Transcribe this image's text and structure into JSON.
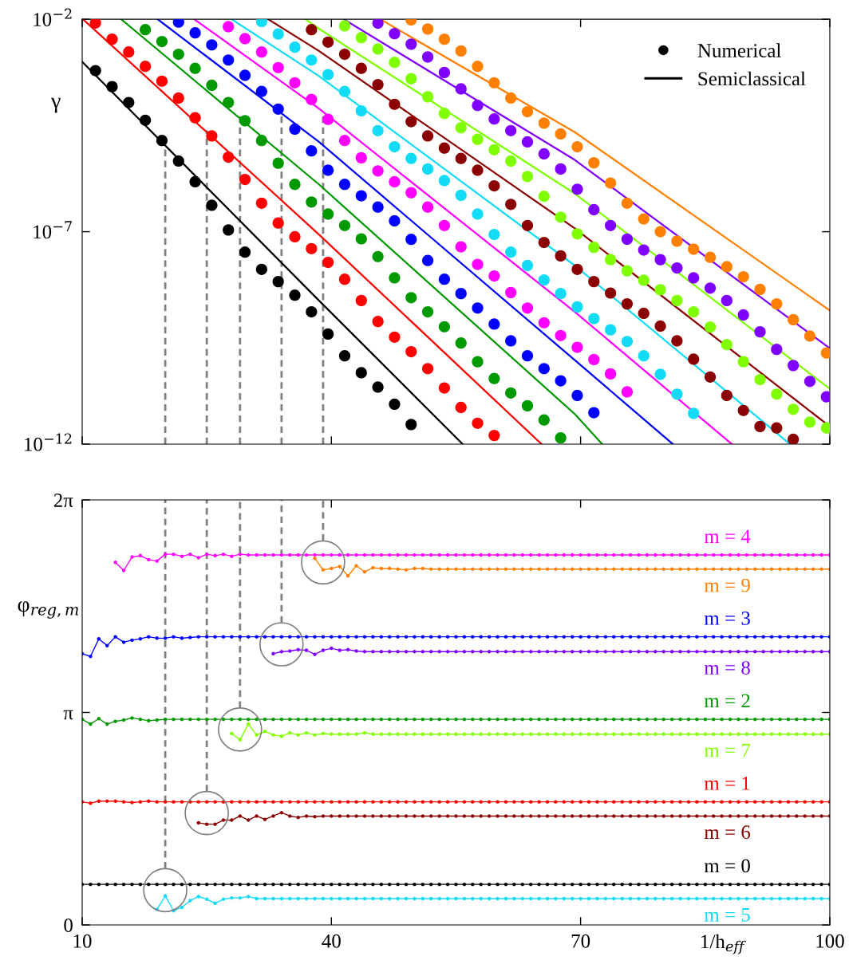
{
  "chart_data": [
    {
      "type": "scatter",
      "ylabel": "γ",
      "log": "y",
      "xlim": [
        10,
        100
      ],
      "xticks": [
        10,
        40,
        70,
        100
      ],
      "ylim": [
        1e-12,
        0.01
      ],
      "yticks": [
        {
          "value": 0.01,
          "label": "10$^{−2}$"
        },
        {
          "value": 1e-07,
          "label": "10$^{−7}$"
        },
        {
          "value": 1e-12,
          "label": "10$^{−12}$"
        }
      ],
      "tick_labels": "y",
      "legend": "top right",
      "marker": "circle",
      "ref_lines": [
        {
          "axis": "x",
          "value": 20,
          "color": "#808080",
          "line_style": "dashed"
        },
        {
          "axis": "x",
          "value": 25,
          "color": "#808080",
          "line_style": "dashed"
        },
        {
          "axis": "x",
          "value": 29,
          "color": "#808080",
          "line_style": "dashed"
        },
        {
          "axis": "x",
          "value": 34,
          "color": "#808080",
          "line_style": "dashed"
        },
        {
          "axis": "x",
          "value": 39,
          "color": "#808080",
          "line_style": "dashed"
        }
      ],
      "series": [
        {
          "name": "Numerical",
          "type": "scatter",
          "color": "#000000",
          "x": [
            11.6,
            13.6,
            15.6,
            17.6,
            19.6,
            21.6,
            23.6,
            25.6,
            27.6,
            29.6,
            31.6,
            33.6,
            35.6,
            37.6,
            39.6,
            41.6,
            43.6,
            45.6,
            47.6,
            49.6
          ],
          "values": [
            0.00062,
            0.00026,
            0.00011,
            4.2e-05,
            1.4e-05,
            4.6e-06,
            1.5e-06,
            4.2e-07,
            1.1e-07,
            3.3e-08,
            1.3e-08,
            6.7e-09,
            3.2e-09,
            1.3e-09,
            3.9e-10,
            1.2e-10,
            4.8e-11,
            2.2e-11,
            8.7e-12,
            2.9e-12
          ]
        },
        {
          "type": "scatter",
          "color": "#ff0000",
          "x": [
            11.6,
            13.6,
            15.6,
            17.6,
            19.6,
            21.6,
            23.6,
            25.6,
            27.6,
            29.6,
            31.6,
            33.6,
            35.6,
            37.6,
            39.6,
            41.6,
            43.6,
            45.6,
            47.6,
            49.6,
            51.6,
            53.6,
            55.6,
            57.6,
            59.6
          ],
          "values": [
            0.0082,
            0.0034,
            0.0017,
            0.00078,
            0.00035,
            0.00014,
            4.8e-05,
            1.8e-05,
            5.7e-06,
            1.7e-06,
            4.7e-07,
            1.6e-07,
            7.6e-08,
            4e-08,
            1.9e-08,
            7.6e-09,
            2.4e-09,
            7.7e-10,
            3.3e-10,
            1.5e-10,
            6e-11,
            2.1e-11,
            7.3e-12,
            3.1e-12,
            1.6e-12
          ]
        },
        {
          "type": "scatter",
          "color": "#009900",
          "x": [
            17.6,
            19.6,
            21.6,
            23.6,
            25.6,
            27.6,
            29.6,
            31.6,
            33.6,
            35.6,
            37.6,
            39.6,
            41.6,
            43.6,
            45.6,
            47.6,
            49.6,
            51.6,
            53.6,
            55.6,
            57.6,
            59.6,
            61.6,
            63.6,
            65.6,
            67.6
          ],
          "values": [
            0.0057,
            0.003,
            0.0015,
            0.0007,
            0.00028,
            0.00011,
            4.1e-05,
            1.4e-05,
            4.1e-06,
            1.3e-06,
            5e-07,
            2.6e-07,
            1.4e-07,
            6.8e-08,
            2.6e-08,
            8.2e-09,
            2.8e-09,
            1.3e-09,
            5.8e-10,
            2.4e-10,
            8.7e-11,
            3.5e-11,
            1.6e-11,
            8e-12,
            3.7e-12,
            1.4e-12
          ]
        },
        {
          "type": "scatter",
          "color": "#0000ff",
          "x": [
            21.6,
            23.6,
            25.6,
            27.6,
            29.6,
            31.6,
            33.6,
            35.6,
            37.6,
            39.6,
            41.6,
            43.6,
            45.6,
            47.6,
            49.6,
            51.6,
            53.6,
            55.6,
            57.6,
            59.6,
            61.6,
            63.6,
            65.6,
            67.6,
            69.6,
            71.6
          ],
          "values": [
            0.0086,
            0.0048,
            0.0025,
            0.0011,
            0.00048,
            0.0002,
            7.7e-05,
            2.6e-05,
            8e-06,
            2.8e-06,
            1.3e-06,
            7e-07,
            3.8e-07,
            1.8e-07,
            6.6e-08,
            2.1e-08,
            7.6e-09,
            3.5e-09,
            1.6e-09,
            6.7e-10,
            2.7e-10,
            1.2e-10,
            6e-11,
            3.1e-11,
            1.4e-11,
            5.5e-12
          ]
        },
        {
          "type": "scatter",
          "color": "#ff00ff",
          "x": [
            27.6,
            29.6,
            31.6,
            33.6,
            35.6,
            37.6,
            39.6,
            41.6,
            43.6,
            45.6,
            47.6,
            49.6,
            51.6,
            53.6,
            55.6,
            57.6,
            59.6,
            61.6,
            63.6,
            65.6,
            67.6,
            69.6,
            71.6,
            73.6,
            75.6
          ],
          "values": [
            0.0067,
            0.0035,
            0.0017,
            0.00073,
            0.00032,
            0.00013,
            4.4e-05,
            1.4e-05,
            5.5e-06,
            2.7e-06,
            1.5e-06,
            8.3e-07,
            3.8e-07,
            1.4e-07,
            4.4e-08,
            1.7e-08,
            9.1e-09,
            3.7e-09,
            1.6e-09,
            7.2e-10,
            3.6e-10,
            1.9e-10,
            9.8e-11,
            4.5e-11,
            1.7e-11
          ]
        },
        {
          "type": "scatter",
          "color": "#12dcf5",
          "x": [
            31.6,
            33.6,
            35.6,
            37.6,
            39.6,
            41.6,
            43.6,
            45.6,
            47.6,
            49.6,
            51.6,
            53.6,
            55.6,
            57.6,
            59.6,
            61.6,
            63.6,
            65.6,
            67.6,
            69.6,
            71.6,
            73.6,
            75.6,
            77.6,
            79.6,
            81.6,
            83.6
          ],
          "values": [
            0.0089,
            0.0045,
            0.0022,
            0.0011,
            0.0005,
            0.0002,
            7e-05,
            2.4e-05,
            1e-05,
            5.3e-06,
            3e-06,
            1.6e-06,
            7.2e-07,
            2.6e-07,
            8.6e-08,
            3.3e-08,
            1.6e-08,
            7.3e-09,
            3.5e-09,
            1.7e-09,
            9e-10,
            4.9e-10,
            2.6e-10,
            1.2e-10,
            4.4e-11,
            1.5e-11,
            5.3e-12
          ]
        },
        {
          "type": "scatter",
          "color": "#8b0000",
          "x": [
            37.6,
            39.6,
            41.6,
            43.6,
            45.6,
            47.6,
            49.6,
            51.6,
            53.6,
            55.6,
            57.6,
            59.6,
            61.6,
            63.6,
            65.6,
            67.6,
            69.6,
            71.6,
            73.6,
            75.6,
            77.6,
            79.6,
            81.6,
            83.6,
            85.6,
            87.6,
            89.6,
            91.6,
            93.6,
            95.6
          ],
          "values": [
            0.0057,
            0.0029,
            0.0015,
            0.0007,
            0.00029,
            0.0001,
            3.9e-05,
            1.8e-05,
            9.3e-06,
            5.3e-06,
            2.8e-06,
            1.2e-06,
            4.4e-07,
            1.4e-07,
            5.6e-08,
            2.7e-08,
            1.3e-08,
            6.7e-09,
            3.6e-09,
            2e-09,
            1.2e-09,
            6e-10,
            2.7e-10,
            1e-10,
            3.8e-11,
            1.4e-11,
            6.2e-12,
            2.6e-12,
            2.4e-12,
            1.3e-12
          ]
        },
        {
          "type": "scatter",
          "color": "#80ff00",
          "x": [
            41.6,
            43.6,
            45.6,
            47.6,
            49.6,
            51.6,
            53.6,
            55.6,
            57.6,
            59.6,
            61.6,
            63.6,
            65.6,
            67.6,
            69.6,
            71.6,
            73.6,
            75.6,
            77.6,
            79.6,
            81.6,
            83.6,
            85.6,
            87.6,
            89.6,
            91.6,
            93.6,
            95.6,
            97.6,
            99.6
          ],
          "values": [
            0.007,
            0.0037,
            0.002,
            0.00097,
            0.0004,
            0.00015,
            6.1e-05,
            2.8e-05,
            1.5e-05,
            8.5e-06,
            4.6e-06,
            2e-06,
            6.8e-07,
            2.2e-07,
            8.9e-08,
            4.3e-08,
            2.2e-08,
            1.2e-08,
            7.2e-09,
            4.3e-09,
            2.4e-09,
            1.3e-09,
            5.7e-10,
            2.2e-10,
            8.7e-11,
            3.3e-11,
            1.5e-11,
            6.6e-12,
            3.3e-12,
            2.4e-12
          ]
        },
        {
          "type": "scatter",
          "color": "#8000ff",
          "x": [
            45.6,
            47.6,
            49.6,
            51.6,
            53.6,
            55.6,
            57.6,
            59.6,
            61.6,
            63.6,
            65.6,
            67.6,
            69.6,
            71.6,
            73.6,
            75.6,
            77.6,
            79.6,
            81.6,
            83.6,
            85.6,
            87.6,
            89.6,
            91.6,
            93.6,
            95.6,
            97.6,
            99.6
          ],
          "values": [
            0.0081,
            0.0046,
            0.0026,
            0.0013,
            0.00056,
            0.00023,
            9.4e-05,
            4.5e-05,
            2.4e-05,
            1.3e-05,
            6.8e-06,
            3e-06,
            1e-06,
            3.3e-07,
            1.4e-07,
            6.7e-08,
            3.7e-08,
            2.2e-08,
            1.4e-08,
            8.2e-09,
            4.7e-09,
            2.4e-09,
            1.1e-09,
            4.4e-10,
            1.7e-10,
            7.1e-11,
            3e-11,
            1.3e-11
          ]
        },
        {
          "type": "scatter",
          "color": "#ff8000",
          "x": [
            49.6,
            51.6,
            53.6,
            55.6,
            57.6,
            59.6,
            61.6,
            63.6,
            65.6,
            67.6,
            69.6,
            71.6,
            73.6,
            75.6,
            77.6,
            79.6,
            81.6,
            83.6,
            85.6,
            87.6,
            89.6,
            91.6,
            93.6,
            95.6,
            97.6,
            99.6
          ],
          "values": [
            0.0097,
            0.0059,
            0.0034,
            0.0018,
            0.00078,
            0.00032,
            0.00014,
            6.7e-05,
            3.6e-05,
            2e-05,
            1e-05,
            4.2e-06,
            1.4e-06,
            4.7e-07,
            2e-07,
            1e-07,
            6e-08,
            3.9e-08,
            2.5e-08,
            1.5e-08,
            8.7e-09,
            4.4e-09,
            2e-09,
            8.5e-10,
            3.5e-10,
            1.4e-10
          ]
        },
        {
          "name": "Semiclassical",
          "type": "line",
          "marker": "none",
          "color": "#000000",
          "x": [
            10,
            38.5,
            55.8
          ],
          "values": [
            0.001,
            2.4e-09,
            1e-12
          ]
        },
        {
          "type": "line",
          "marker": "none",
          "color": "#ff0000",
          "x": [
            10.1,
            38.5,
            65.3
          ],
          "values": [
            0.01,
            8.6e-08,
            1e-12
          ]
        },
        {
          "type": "line",
          "marker": "none",
          "color": "#009900",
          "x": [
            14.7,
            38.5,
            69.3,
            72.6
          ],
          "values": [
            0.01,
            1.3e-06,
            5.1e-12,
            1e-12
          ]
        },
        {
          "type": "line",
          "marker": "none",
          "color": "#0000ff",
          "x": [
            19.1,
            38.5,
            69.3,
            81.1
          ],
          "values": [
            0.01,
            1.3e-05,
            9.5e-11,
            1e-12
          ]
        },
        {
          "type": "line",
          "marker": "none",
          "color": "#ff00ff",
          "x": [
            23.5,
            38.5,
            69.3,
            88.2
          ],
          "values": [
            0.01,
            7.9e-05,
            1.3e-09,
            1e-12
          ]
        },
        {
          "type": "line",
          "marker": "none",
          "color": "#12dcf5",
          "x": [
            28.0,
            38.5,
            69.3,
            95.2
          ],
          "values": [
            0.01,
            0.00046,
            1.6e-08,
            1e-12
          ]
        },
        {
          "type": "line",
          "marker": "none",
          "color": "#8b0000",
          "x": [
            32.4,
            38.5,
            69.3,
            100
          ],
          "values": [
            0.01,
            0.0018,
            1.2e-07,
            2.6e-12
          ]
        },
        {
          "type": "line",
          "marker": "none",
          "color": "#80ff00",
          "x": [
            36.9,
            38.5,
            69.3,
            100
          ],
          "values": [
            0.01,
            0.006,
            7.9e-07,
            2e-11
          ]
        },
        {
          "type": "line",
          "marker": "none",
          "color": "#8000ff",
          "x": [
            41.5,
            69.3,
            100
          ],
          "values": [
            0.01,
            4.9e-06,
            1.8e-10
          ]
        },
        {
          "type": "line",
          "marker": "none",
          "color": "#ff8000",
          "x": [
            45.9,
            69.3,
            100
          ],
          "values": [
            0.01,
            2.2e-05,
            1.4e-09
          ]
        }
      ]
    },
    {
      "type": "line",
      "ylabel": "φ$_{reg,m}$",
      "xlabel": "1/h$_{eff}$",
      "xlim": [
        10,
        100
      ],
      "xticks": [
        10,
        40,
        70,
        100
      ],
      "ylim": [
        0,
        6.28319
      ],
      "yticks": [
        0,
        {
          "value": 3.14159,
          "label": "π"
        },
        {
          "value": 6.28319,
          "label": "2π"
        }
      ],
      "marker": "circle",
      "ref_lines": [
        {
          "axis": "x",
          "value": 20,
          "color": "#808080",
          "line_style": "dashed"
        },
        {
          "axis": "x",
          "value": 25,
          "color": "#808080",
          "line_style": "dashed"
        },
        {
          "axis": "x",
          "value": 29,
          "color": "#808080",
          "line_style": "dashed"
        },
        {
          "axis": "x",
          "value": 34,
          "color": "#808080",
          "line_style": "dashed"
        },
        {
          "axis": "x",
          "value": 39,
          "color": "#808080",
          "line_style": "dashed"
        }
      ],
      "x": [
        10,
        11,
        12,
        13,
        14,
        15,
        16,
        17,
        18,
        19,
        20,
        21,
        22,
        23,
        24,
        25,
        26,
        27,
        28,
        29,
        30,
        31,
        32,
        33,
        34,
        35,
        36,
        37,
        38,
        39,
        40,
        41,
        42,
        43,
        44,
        45,
        46,
        47,
        48,
        49,
        50,
        51,
        52,
        53,
        54,
        55,
        56,
        57,
        58,
        59,
        60,
        61,
        62,
        63,
        64,
        65,
        66,
        67,
        68,
        69,
        70,
        71,
        72,
        73,
        74,
        75,
        76,
        77,
        78,
        79,
        80,
        81,
        82,
        83,
        84,
        85,
        86,
        87,
        88,
        89,
        90,
        91,
        92,
        93,
        94,
        95,
        96,
        97,
        98,
        99,
        100
      ],
      "series": [
        {
          "name": "m = 0",
          "color": "#000000",
          "values": [
            0.6,
            0.6,
            0.6,
            0.6,
            0.6,
            0.6,
            0.6,
            0.6,
            0.6,
            0.6,
            0.6,
            0.6,
            0.6,
            0.6,
            0.6,
            0.6,
            0.6,
            0.6,
            0.6,
            0.6,
            0.6,
            0.6,
            0.6,
            0.6,
            0.6,
            0.6,
            0.6,
            0.6,
            0.6,
            0.6,
            0.6,
            0.6,
            0.6,
            0.6,
            0.6,
            0.6,
            0.6,
            0.6,
            0.6,
            0.6,
            0.6,
            0.6,
            0.6,
            0.6,
            0.6,
            0.6,
            0.6,
            0.6,
            0.6,
            0.6,
            0.6,
            0.6,
            0.6,
            0.6,
            0.6,
            0.6,
            0.6,
            0.6,
            0.6,
            0.6,
            0.6,
            0.6,
            0.6,
            0.6,
            0.6,
            0.6,
            0.6,
            0.6,
            0.6,
            0.6,
            0.6,
            0.6,
            0.6,
            0.6,
            0.6,
            0.6,
            0.6,
            0.6,
            0.6,
            0.6,
            0.6,
            0.6,
            0.6,
            0.6,
            0.6,
            0.6,
            0.6,
            0.6,
            0.6,
            0.6,
            0.6
          ]
        },
        {
          "name": "m = 1",
          "color": "#ff0000",
          "values": [
            1.82,
            1.8,
            1.83,
            1.83,
            1.83,
            1.82,
            1.81,
            1.82,
            1.83,
            1.82,
            1.82,
            1.82,
            1.82,
            1.82,
            1.82,
            1.82,
            1.82,
            1.82,
            1.82,
            1.82,
            1.82,
            1.82,
            1.82,
            1.82,
            1.82,
            1.82,
            1.82,
            1.82,
            1.82,
            1.82,
            1.82,
            1.82,
            1.82,
            1.82,
            1.82,
            1.82,
            1.82,
            1.82,
            1.82,
            1.82,
            1.82,
            1.82,
            1.82,
            1.82,
            1.82,
            1.82,
            1.82,
            1.82,
            1.82,
            1.82,
            1.82,
            1.82,
            1.82,
            1.82,
            1.82,
            1.82,
            1.82,
            1.82,
            1.82,
            1.82,
            1.82,
            1.82,
            1.82,
            1.82,
            1.82,
            1.82,
            1.82,
            1.82,
            1.82,
            1.82,
            1.82,
            1.82,
            1.82,
            1.82,
            1.82,
            1.82,
            1.82,
            1.82,
            1.82,
            1.82,
            1.82,
            1.82,
            1.82,
            1.82,
            1.82,
            1.82,
            1.82,
            1.82,
            1.82,
            1.82,
            1.82
          ]
        },
        {
          "name": "m = 2",
          "color": "#009900",
          "values": [
            3.04,
            2.97,
            3.05,
            2.97,
            3.01,
            3.03,
            3.06,
            3.04,
            3.02,
            3.03,
            3.04,
            3.04,
            3.04,
            3.04,
            3.04,
            3.04,
            3.04,
            3.04,
            3.04,
            3.04,
            3.04,
            3.04,
            3.04,
            3.04,
            3.04,
            3.04,
            3.04,
            3.04,
            3.04,
            3.04,
            3.04,
            3.04,
            3.04,
            3.04,
            3.04,
            3.04,
            3.04,
            3.04,
            3.04,
            3.04,
            3.04,
            3.04,
            3.04,
            3.04,
            3.04,
            3.04,
            3.04,
            3.04,
            3.04,
            3.04,
            3.04,
            3.04,
            3.04,
            3.04,
            3.04,
            3.04,
            3.04,
            3.04,
            3.04,
            3.04,
            3.04,
            3.04,
            3.04,
            3.04,
            3.04,
            3.04,
            3.04,
            3.04,
            3.04,
            3.04,
            3.04,
            3.04,
            3.04,
            3.04,
            3.04,
            3.04,
            3.04,
            3.04,
            3.04,
            3.04,
            3.04,
            3.04,
            3.04,
            3.04,
            3.04,
            3.04,
            3.04,
            3.04,
            3.04,
            3.04,
            3.04
          ]
        },
        {
          "name": "m = 3",
          "color": "#0000ff",
          "values": [
            4.01,
            3.97,
            4.23,
            4.13,
            4.26,
            4.18,
            4.21,
            4.23,
            4.26,
            4.24,
            4.24,
            4.26,
            4.24,
            4.25,
            4.26,
            4.26,
            4.26,
            4.26,
            4.26,
            4.26,
            4.26,
            4.26,
            4.26,
            4.26,
            4.26,
            4.26,
            4.26,
            4.26,
            4.26,
            4.26,
            4.26,
            4.26,
            4.26,
            4.26,
            4.26,
            4.26,
            4.26,
            4.26,
            4.26,
            4.26,
            4.26,
            4.26,
            4.26,
            4.26,
            4.26,
            4.26,
            4.26,
            4.26,
            4.26,
            4.26,
            4.26,
            4.26,
            4.26,
            4.26,
            4.26,
            4.26,
            4.26,
            4.26,
            4.26,
            4.26,
            4.26,
            4.26,
            4.26,
            4.26,
            4.26,
            4.26,
            4.26,
            4.26,
            4.26,
            4.26,
            4.26,
            4.26,
            4.26,
            4.26,
            4.26,
            4.26,
            4.26,
            4.26,
            4.26,
            4.26,
            4.26,
            4.26,
            4.26,
            4.26,
            4.26,
            4.26,
            4.26,
            4.26,
            4.26,
            4.26,
            4.26
          ]
        },
        {
          "name": "m = 4",
          "color": "#ff00ff",
          "values": [
            null,
            null,
            null,
            null,
            5.36,
            5.24,
            5.44,
            5.46,
            5.4,
            5.38,
            5.48,
            5.48,
            5.45,
            5.48,
            5.43,
            5.48,
            5.46,
            5.48,
            5.45,
            5.48,
            5.47,
            5.47,
            5.47,
            5.47,
            5.47,
            5.47,
            5.47,
            5.47,
            5.47,
            5.47,
            5.47,
            5.47,
            5.47,
            5.47,
            5.47,
            5.47,
            5.47,
            5.47,
            5.47,
            5.47,
            5.47,
            5.47,
            5.47,
            5.47,
            5.47,
            5.47,
            5.47,
            5.47,
            5.47,
            5.47,
            5.47,
            5.47,
            5.47,
            5.47,
            5.47,
            5.47,
            5.47,
            5.47,
            5.47,
            5.47,
            5.47,
            5.47,
            5.47,
            5.47,
            5.47,
            5.47,
            5.47,
            5.47,
            5.47,
            5.47,
            5.47,
            5.47,
            5.47,
            5.47,
            5.47,
            5.47,
            5.47,
            5.47,
            5.47,
            5.47,
            5.47,
            5.47,
            5.47,
            5.47,
            5.47,
            5.47,
            5.47,
            5.47,
            5.47,
            5.47,
            5.47
          ]
        },
        {
          "name": "m = 5",
          "color": "#12dcf5",
          "values": [
            null,
            null,
            null,
            null,
            null,
            null,
            null,
            null,
            null,
            0.23,
            0.43,
            0.21,
            0.26,
            0.36,
            0.42,
            0.38,
            0.32,
            0.38,
            0.4,
            0.4,
            0.42,
            0.39,
            0.39,
            0.39,
            0.39,
            0.39,
            0.39,
            0.39,
            0.39,
            0.39,
            0.39,
            0.39,
            0.39,
            0.39,
            0.39,
            0.39,
            0.39,
            0.39,
            0.39,
            0.39,
            0.39,
            0.39,
            0.39,
            0.39,
            0.39,
            0.39,
            0.39,
            0.39,
            0.39,
            0.39,
            0.39,
            0.39,
            0.39,
            0.39,
            0.39,
            0.39,
            0.39,
            0.39,
            0.39,
            0.39,
            0.39,
            0.39,
            0.39,
            0.39,
            0.39,
            0.39,
            0.39,
            0.39,
            0.39,
            0.39,
            0.39,
            0.39,
            0.39,
            0.39,
            0.39,
            0.39,
            0.39,
            0.39,
            0.39,
            0.39,
            0.39,
            0.39,
            0.39,
            0.39,
            0.39,
            0.39,
            0.39,
            0.39,
            0.39,
            0.39,
            0.39
          ]
        },
        {
          "name": "m = 6",
          "color": "#8b0000",
          "values": [
            null,
            null,
            null,
            null,
            null,
            null,
            null,
            null,
            null,
            null,
            null,
            null,
            null,
            null,
            1.51,
            1.49,
            1.49,
            1.55,
            1.55,
            1.61,
            1.55,
            1.61,
            1.56,
            1.61,
            1.66,
            1.61,
            1.59,
            1.61,
            1.6,
            1.61,
            1.61,
            1.61,
            1.61,
            1.61,
            1.61,
            1.61,
            1.61,
            1.61,
            1.61,
            1.61,
            1.61,
            1.61,
            1.61,
            1.61,
            1.61,
            1.61,
            1.61,
            1.61,
            1.61,
            1.61,
            1.61,
            1.61,
            1.61,
            1.61,
            1.61,
            1.61,
            1.61,
            1.61,
            1.61,
            1.61,
            1.61,
            1.61,
            1.61,
            1.61,
            1.61,
            1.61,
            1.61,
            1.61,
            1.61,
            1.61,
            1.61,
            1.61,
            1.61,
            1.61,
            1.61,
            1.61,
            1.61,
            1.61,
            1.61,
            1.61,
            1.61,
            1.61,
            1.61,
            1.61,
            1.61,
            1.61,
            1.61,
            1.61,
            1.61,
            1.61,
            1.61
          ]
        },
        {
          "name": "m = 7",
          "color": "#80ff00",
          "values": [
            null,
            null,
            null,
            null,
            null,
            null,
            null,
            null,
            null,
            null,
            null,
            null,
            null,
            null,
            null,
            null,
            null,
            null,
            2.83,
            2.74,
            2.97,
            2.81,
            2.86,
            2.81,
            2.79,
            2.84,
            2.81,
            2.84,
            2.81,
            2.83,
            2.82,
            2.82,
            2.82,
            2.82,
            2.84,
            2.82,
            2.82,
            2.82,
            2.82,
            2.82,
            2.82,
            2.82,
            2.82,
            2.82,
            2.82,
            2.82,
            2.82,
            2.82,
            2.82,
            2.82,
            2.82,
            2.82,
            2.82,
            2.82,
            2.82,
            2.82,
            2.82,
            2.82,
            2.82,
            2.82,
            2.82,
            2.82,
            2.82,
            2.82,
            2.82,
            2.82,
            2.82,
            2.82,
            2.82,
            2.82,
            2.82,
            2.82,
            2.82,
            2.82,
            2.82,
            2.82,
            2.82,
            2.82,
            2.82,
            2.82,
            2.82,
            2.82,
            2.82,
            2.82,
            2.82,
            2.82,
            2.82,
            2.82,
            2.82,
            2.82,
            2.82
          ]
        },
        {
          "name": "m = 8",
          "color": "#8000ff",
          "values": [
            null,
            null,
            null,
            null,
            null,
            null,
            null,
            null,
            null,
            null,
            null,
            null,
            null,
            null,
            null,
            null,
            null,
            null,
            null,
            null,
            null,
            null,
            null,
            4.01,
            4.04,
            4.05,
            4.07,
            4.06,
            4.0,
            4.06,
            4.09,
            4.06,
            4.07,
            4.05,
            4.04,
            4.04,
            4.04,
            4.04,
            4.04,
            4.04,
            4.04,
            4.04,
            4.04,
            4.04,
            4.04,
            4.04,
            4.04,
            4.04,
            4.04,
            4.04,
            4.04,
            4.04,
            4.04,
            4.04,
            4.04,
            4.04,
            4.04,
            4.04,
            4.04,
            4.04,
            4.04,
            4.04,
            4.04,
            4.04,
            4.04,
            4.04,
            4.04,
            4.04,
            4.04,
            4.04,
            4.04,
            4.04,
            4.04,
            4.04,
            4.04,
            4.04,
            4.04,
            4.04,
            4.04,
            4.04,
            4.04,
            4.04,
            4.04,
            4.04,
            4.04,
            4.04,
            4.04,
            4.04,
            4.04,
            4.04,
            4.04
          ]
        },
        {
          "name": "m = 9",
          "color": "#ff8000",
          "values": [
            null,
            null,
            null,
            null,
            null,
            null,
            null,
            null,
            null,
            null,
            null,
            null,
            null,
            null,
            null,
            null,
            null,
            null,
            null,
            null,
            null,
            null,
            null,
            null,
            null,
            null,
            null,
            null,
            5.42,
            5.25,
            5.27,
            5.3,
            5.16,
            5.31,
            5.22,
            5.28,
            5.27,
            5.27,
            5.26,
            5.25,
            5.27,
            5.27,
            5.26,
            5.26,
            5.26,
            5.26,
            5.26,
            5.26,
            5.26,
            5.26,
            5.26,
            5.26,
            5.26,
            5.26,
            5.26,
            5.26,
            5.26,
            5.26,
            5.26,
            5.26,
            5.26,
            5.26,
            5.26,
            5.26,
            5.26,
            5.26,
            5.26,
            5.26,
            5.26,
            5.26,
            5.26,
            5.26,
            5.26,
            5.26,
            5.26,
            5.26,
            5.26,
            5.26,
            5.26,
            5.26,
            5.26,
            5.26,
            5.26,
            5.26,
            5.26,
            5.26,
            5.26,
            5.26,
            5.26,
            5.26,
            5.26
          ]
        }
      ]
    }
  ]
}
